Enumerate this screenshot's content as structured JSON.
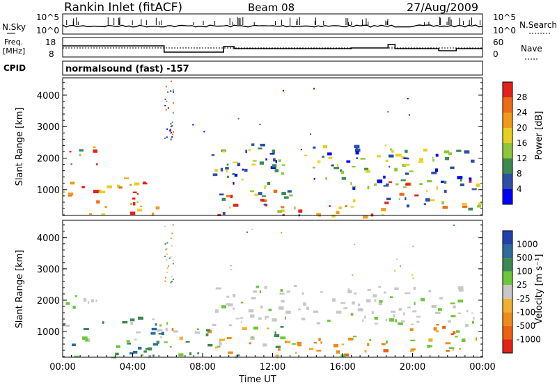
{
  "header": {
    "station": "Rankin Inlet (fitACF)",
    "beam": "Beam 08",
    "date": "27/Aug/2009"
  },
  "noise_panel": {
    "left_label": "N.Sky",
    "right_label": "N.Search",
    "ticks": [
      "10^5",
      "10^0"
    ]
  },
  "freq_panel": {
    "left_label": "Freq.",
    "left_unit": "[MHz]",
    "left_ticks": [
      "18",
      "8"
    ],
    "right_label": "Nave",
    "right_ticks": [
      "60",
      "0"
    ]
  },
  "cpid": {
    "label": "CPID",
    "value": "normalsound (fast) -157"
  },
  "chart_data": [
    {
      "type": "heatmap",
      "name": "power",
      "ylabel": "Slant Range [km]",
      "ylim": [
        180,
        4550
      ],
      "y_ticks": [
        1000,
        2000,
        3000,
        4000
      ],
      "xlim": [
        0,
        24
      ],
      "x_ticks": [
        0,
        4,
        8,
        12,
        16,
        20,
        24
      ],
      "colorbar": {
        "label": "Power [dB]",
        "ticks": [
          "4",
          "8",
          "12",
          "16",
          "20",
          "24",
          "28"
        ],
        "colors": [
          "#0000ff",
          "#2c4fa8",
          "#3a8a52",
          "#8dc83a",
          "#e8d022",
          "#f29a18",
          "#f06a14",
          "#e52016"
        ]
      },
      "echo_regions": [
        {
          "t": [
            0.0,
            4.0
          ],
          "r": [
            700,
            1300
          ],
          "level": "high"
        },
        {
          "t": [
            1.5,
            5.5
          ],
          "r": [
            180,
            700
          ],
          "level": "high"
        },
        {
          "t": [
            0.0,
            2.0
          ],
          "r": [
            1800,
            2400
          ],
          "level": "medium"
        },
        {
          "t": [
            3.5,
            5.0
          ],
          "r": [
            800,
            1500
          ],
          "level": "high"
        },
        {
          "t": [
            8.0,
            13.5
          ],
          "r": [
            180,
            1100
          ],
          "level": "mixed"
        },
        {
          "t": [
            13.0,
            18.5
          ],
          "r": [
            180,
            700
          ],
          "level": "high"
        },
        {
          "t": [
            8.5,
            23.5
          ],
          "r": [
            1100,
            2500
          ],
          "level": "low"
        },
        {
          "t": [
            18.5,
            23.8
          ],
          "r": [
            400,
            1400
          ],
          "level": "mixed"
        }
      ]
    },
    {
      "type": "heatmap",
      "name": "velocity",
      "ylabel": "Slant Range [km]",
      "ylim": [
        180,
        4550
      ],
      "y_ticks": [
        1000,
        2000,
        3000,
        4000
      ],
      "xlim": [
        0,
        24
      ],
      "x_ticks": [
        0,
        4,
        8,
        12,
        16,
        20,
        24
      ],
      "x_tick_labels": [
        "00:00",
        "04:00",
        "08:00",
        "12:00",
        "16:00",
        "20:00",
        "00:00"
      ],
      "xlabel": "Time UT",
      "colorbar": {
        "label": "Velocity [m s⁻¹]",
        "ticks": [
          "1000",
          "500",
          "100",
          "25",
          "-25",
          "-100",
          "-500",
          "-1000"
        ],
        "colors": [
          "#2040b0",
          "#2c6aa0",
          "#3a8a52",
          "#6cc83a",
          "#c8c8c8",
          "#f2b030",
          "#f08a18",
          "#f06010",
          "#e52016"
        ]
      },
      "echo_regions": [
        {
          "t": [
            0.0,
            2.0
          ],
          "r": [
            1800,
            2400
          ],
          "level": "ground"
        },
        {
          "t": [
            0.0,
            6.0
          ],
          "r": [
            180,
            1500
          ],
          "level": "toward"
        },
        {
          "t": [
            6.0,
            14.0
          ],
          "r": [
            180,
            1200
          ],
          "level": "mixed"
        },
        {
          "t": [
            14.0,
            18.5
          ],
          "r": [
            180,
            900
          ],
          "level": "away"
        },
        {
          "t": [
            8.5,
            23.5
          ],
          "r": [
            1200,
            2500
          ],
          "level": "ground"
        },
        {
          "t": [
            19.5,
            23.8
          ],
          "r": [
            400,
            1300
          ],
          "level": "away"
        }
      ]
    }
  ]
}
